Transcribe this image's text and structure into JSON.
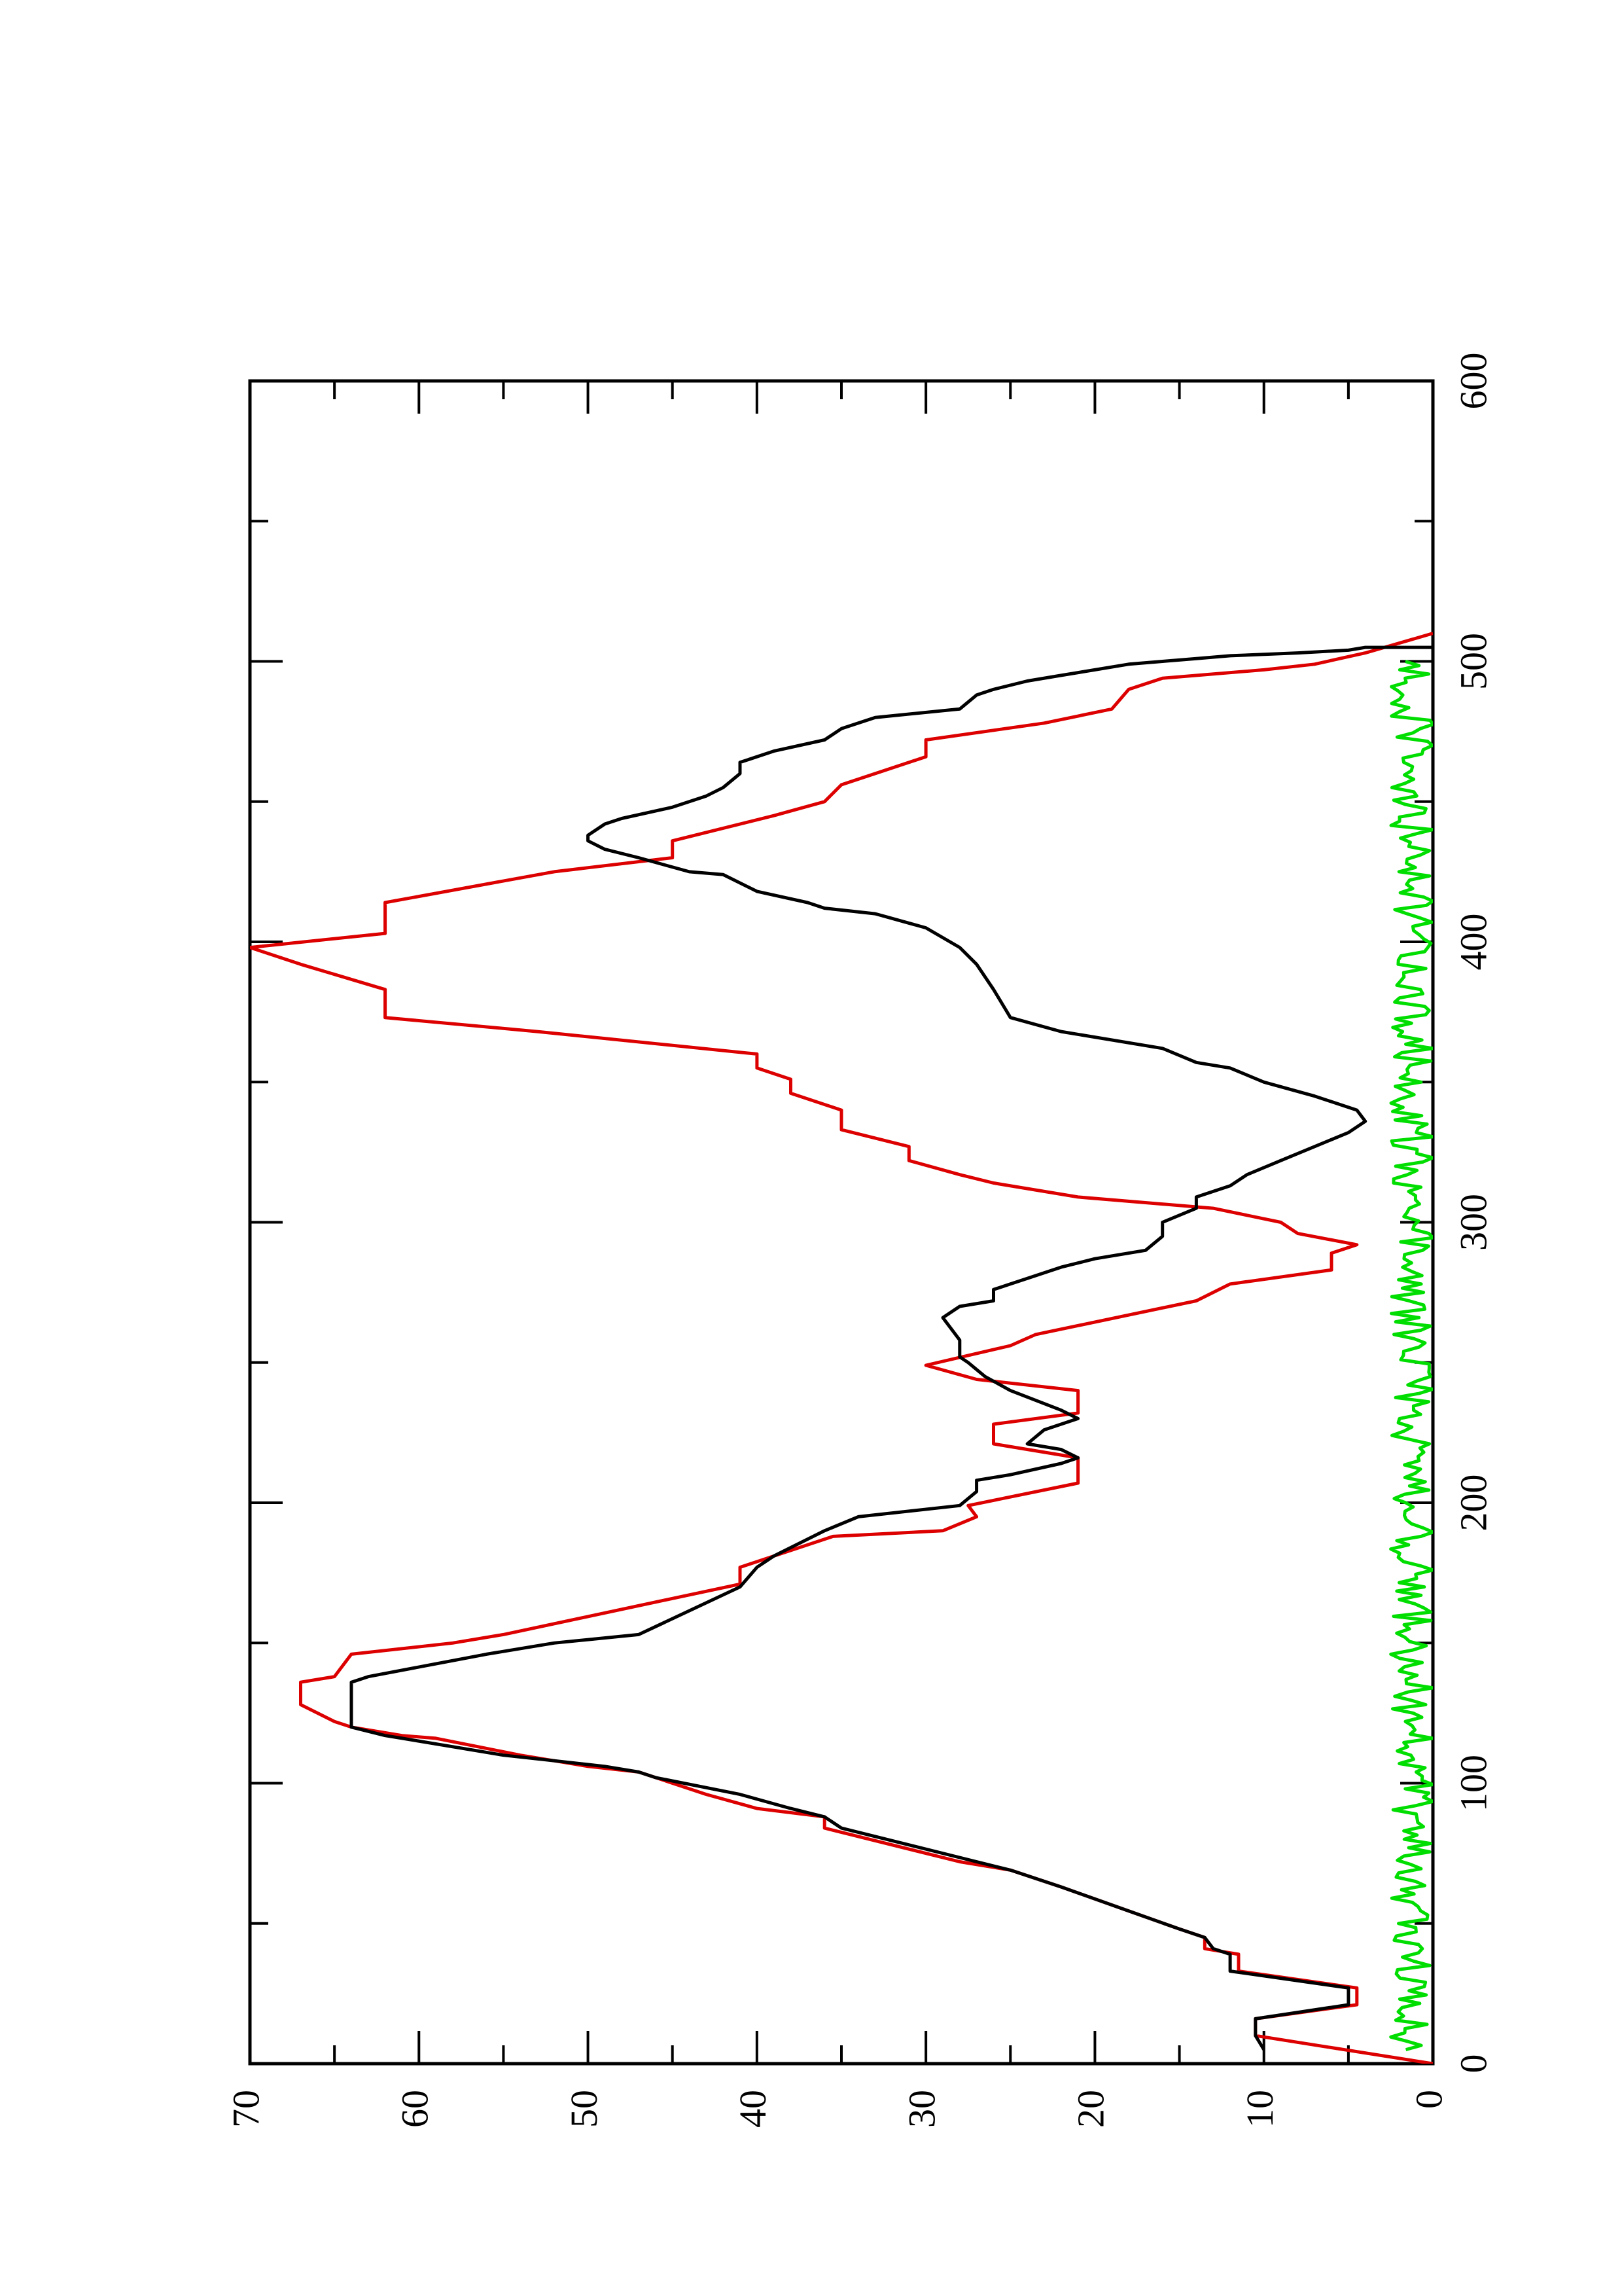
{
  "chart_data": {
    "type": "line",
    "title": "",
    "xlabel": "",
    "ylabel": "",
    "orientation": "rotated-90-clockwise",
    "xlim": [
      0,
      600
    ],
    "ylim": [
      0,
      70
    ],
    "x_ticks": [
      0,
      100,
      200,
      300,
      400,
      500,
      600
    ],
    "x_minor_ticks": [
      50,
      150,
      250,
      350,
      450,
      550
    ],
    "y_ticks": [
      0,
      10,
      20,
      30,
      40,
      50,
      60,
      70
    ],
    "y_minor_ticks": [
      5,
      15,
      25,
      35,
      45,
      55,
      65
    ],
    "grid": false,
    "legend": "none",
    "series": [
      {
        "color": "#dd0000",
        "style": "stepped",
        "points": [
          [
            0,
            0
          ],
          [
            10,
            10.5
          ],
          [
            16,
            10.5
          ],
          [
            21,
            4.5
          ],
          [
            27,
            4.5
          ],
          [
            33,
            11.5
          ],
          [
            39,
            11.5
          ],
          [
            41,
            13.5
          ],
          [
            45,
            13.5
          ],
          [
            48,
            15
          ],
          [
            63,
            22
          ],
          [
            69,
            25
          ],
          [
            72,
            28
          ],
          [
            81,
            34
          ],
          [
            84,
            36
          ],
          [
            88,
            36
          ],
          [
            91,
            40
          ],
          [
            96,
            43
          ],
          [
            102,
            46
          ],
          [
            104,
            47
          ],
          [
            106,
            50
          ],
          [
            108,
            52
          ],
          [
            110,
            54
          ],
          [
            116,
            59
          ],
          [
            117,
            61
          ],
          [
            120,
            64
          ],
          [
            122,
            65
          ],
          [
            128,
            67
          ],
          [
            136,
            67
          ],
          [
            138,
            65
          ],
          [
            146,
            64
          ],
          [
            150,
            58
          ],
          [
            153,
            55
          ],
          [
            171,
            41
          ],
          [
            177,
            41
          ],
          [
            188,
            35.5
          ],
          [
            190,
            29
          ],
          [
            195,
            27
          ],
          [
            199,
            27.5
          ],
          [
            207,
            21
          ],
          [
            216,
            21
          ],
          [
            221,
            26
          ],
          [
            228,
            26
          ],
          [
            232,
            21
          ],
          [
            240,
            21
          ],
          [
            244,
            27
          ],
          [
            249,
            30
          ],
          [
            256,
            25
          ],
          [
            260,
            23.5
          ],
          [
            272,
            14
          ],
          [
            278,
            12
          ],
          [
            283,
            6
          ],
          [
            289,
            6
          ],
          [
            292,
            4.5
          ],
          [
            296,
            8
          ],
          [
            300,
            9
          ],
          [
            305,
            13
          ],
          [
            309,
            21
          ],
          [
            314,
            26
          ],
          [
            317,
            28
          ],
          [
            322,
            31
          ],
          [
            327,
            31
          ],
          [
            333,
            35
          ],
          [
            340,
            35
          ],
          [
            346,
            38
          ],
          [
            351,
            38
          ],
          [
            355,
            40
          ],
          [
            360,
            40
          ],
          [
            368,
            53
          ],
          [
            373,
            62
          ],
          [
            383,
            62
          ],
          [
            392,
            67
          ],
          [
            398,
            70
          ],
          [
            403,
            62
          ],
          [
            414,
            62
          ],
          [
            425,
            52
          ],
          [
            430,
            45
          ],
          [
            436,
            45
          ],
          [
            445,
            39
          ],
          [
            450,
            36
          ],
          [
            456,
            35
          ],
          [
            460,
            33
          ],
          [
            466,
            30
          ],
          [
            472,
            30
          ],
          [
            478,
            23
          ],
          [
            483,
            19
          ],
          [
            490,
            18
          ],
          [
            494,
            16
          ],
          [
            497,
            10
          ],
          [
            499,
            7
          ],
          [
            503,
            4
          ],
          [
            510,
            0
          ]
        ]
      },
      {
        "color": "#000000",
        "style": "line",
        "points": [
          [
            5,
            10
          ],
          [
            10,
            10.5
          ],
          [
            16,
            10.5
          ],
          [
            21,
            5
          ],
          [
            27,
            5
          ],
          [
            33,
            12
          ],
          [
            39,
            12
          ],
          [
            41,
            13
          ],
          [
            45,
            13.5
          ],
          [
            48,
            15
          ],
          [
            63,
            22
          ],
          [
            69,
            25
          ],
          [
            72,
            27
          ],
          [
            81,
            33
          ],
          [
            84,
            35
          ],
          [
            88,
            36
          ],
          [
            91,
            38
          ],
          [
            96,
            41
          ],
          [
            102,
            46
          ],
          [
            104,
            47
          ],
          [
            106,
            49
          ],
          [
            108,
            52
          ],
          [
            110,
            55
          ],
          [
            116,
            61
          ],
          [
            117,
            62
          ],
          [
            120,
            64
          ],
          [
            122,
            64
          ],
          [
            128,
            64
          ],
          [
            130,
            64
          ],
          [
            136,
            64
          ],
          [
            138,
            63
          ],
          [
            146,
            56
          ],
          [
            150,
            52
          ],
          [
            153,
            47
          ],
          [
            170,
            41
          ],
          [
            177,
            40
          ],
          [
            181,
            39
          ],
          [
            190,
            36
          ],
          [
            195,
            34
          ],
          [
            199,
            28
          ],
          [
            204,
            27
          ],
          [
            208,
            27
          ],
          [
            210,
            25
          ],
          [
            214,
            22
          ],
          [
            216,
            21
          ],
          [
            219,
            22
          ],
          [
            221,
            24
          ],
          [
            226,
            23
          ],
          [
            230,
            21
          ],
          [
            233,
            22
          ],
          [
            240,
            25
          ],
          [
            245,
            26.5
          ],
          [
            250,
            27.5
          ],
          [
            252,
            28
          ],
          [
            258,
            28
          ],
          [
            266,
            29
          ],
          [
            270,
            28
          ],
          [
            272,
            26
          ],
          [
            276,
            26
          ],
          [
            278,
            25
          ],
          [
            280,
            24
          ],
          [
            284,
            22
          ],
          [
            287,
            20
          ],
          [
            290,
            17
          ],
          [
            295,
            16
          ],
          [
            300,
            16
          ],
          [
            305,
            14
          ],
          [
            309,
            14
          ],
          [
            313,
            12
          ],
          [
            317,
            11
          ],
          [
            322,
            9
          ],
          [
            327,
            7
          ],
          [
            332,
            5
          ],
          [
            336,
            4
          ],
          [
            340,
            4.5
          ],
          [
            345,
            7
          ],
          [
            350,
            10
          ],
          [
            355,
            12
          ],
          [
            357,
            14
          ],
          [
            362,
            16
          ],
          [
            368,
            22
          ],
          [
            373,
            25
          ],
          [
            383,
            26
          ],
          [
            392,
            27
          ],
          [
            398,
            28
          ],
          [
            405,
            30
          ],
          [
            410,
            33
          ],
          [
            412,
            36
          ],
          [
            414,
            37
          ],
          [
            418,
            40
          ],
          [
            424,
            42
          ],
          [
            425,
            44
          ],
          [
            430,
            47
          ],
          [
            433,
            49
          ],
          [
            436,
            50
          ],
          [
            438,
            50
          ],
          [
            442,
            49
          ],
          [
            444,
            48
          ],
          [
            448,
            45
          ],
          [
            452,
            43
          ],
          [
            455,
            42
          ],
          [
            460,
            41
          ],
          [
            464,
            41
          ],
          [
            468,
            39
          ],
          [
            472,
            36
          ],
          [
            476,
            35
          ],
          [
            478,
            34
          ],
          [
            480,
            33
          ],
          [
            483,
            28
          ],
          [
            488,
            27
          ],
          [
            490,
            26
          ],
          [
            493,
            24
          ],
          [
            495,
            22
          ],
          [
            497,
            20
          ],
          [
            499,
            18
          ],
          [
            500,
            16
          ],
          [
            501,
            14
          ],
          [
            502,
            12
          ],
          [
            503,
            8
          ],
          [
            504,
            5
          ],
          [
            505,
            4
          ],
          [
            505,
            0
          ]
        ]
      },
      {
        "color": "#00dd00",
        "style": "noise",
        "baseline_mean": 1.2,
        "amplitude": 1.3,
        "x_range": [
          5,
          500
        ]
      }
    ]
  }
}
